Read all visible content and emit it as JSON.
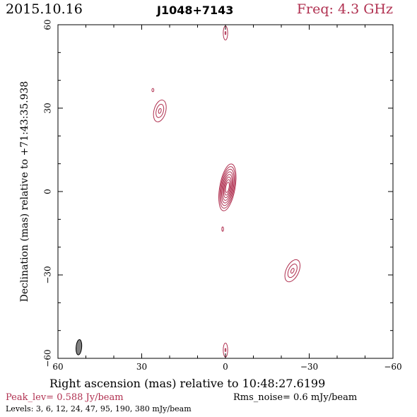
{
  "header": {
    "date": "2015.10.16",
    "source": "J1048+7143",
    "frequency": "Freq: 4.3 GHz"
  },
  "footer": {
    "peak": "Peak_lev=  0.588 Jy/beam",
    "rms": "Rms_noise=   0.6 mJy/beam",
    "levels": "Levels:    3,    6,   12,   24,   47,   95, 190, 380 mJy/beam"
  },
  "colors": {
    "contour": "#b03050",
    "beam": "#808080",
    "frame": "#000000"
  },
  "chart_data": {
    "type": "contour",
    "xlabel": "Right ascension (mas) relative to 10:48:27.6199",
    "ylabel": "Declination (mas) relative to +71:43:35.938",
    "xlim": [
      60,
      -60
    ],
    "ylim": [
      -60,
      60
    ],
    "xticks": [
      60,
      30,
      0,
      -30,
      -60
    ],
    "yticks": [
      -60,
      -30,
      0,
      30,
      60
    ],
    "xtick_labels": [
      "60",
      "30",
      "0",
      "−30",
      "−60"
    ],
    "ytick_labels": [
      "−60",
      "−30",
      "0",
      "30",
      "60"
    ],
    "contour_levels_mJy": [
      3,
      6,
      12,
      24,
      47,
      95,
      190,
      380
    ],
    "components": [
      {
        "name": "core",
        "x": -0.7,
        "y": 1.5,
        "major": 17,
        "minor": 5.5,
        "angle": 10,
        "levels": 8
      },
      {
        "name": "north-west component",
        "x": 23.5,
        "y": 29,
        "major": 8,
        "minor": 4.2,
        "angle": 15,
        "levels": 3
      },
      {
        "name": "south-east component",
        "x": -24,
        "y": -28.5,
        "major": 8.5,
        "minor": 4.5,
        "angle": 25,
        "levels": 3
      },
      {
        "name": "north edge feature",
        "x": 0,
        "y": 57,
        "major": 5,
        "minor": 1.6,
        "angle": 0,
        "levels": 2
      },
      {
        "name": "south edge feature",
        "x": 0,
        "y": -57,
        "major": 5,
        "minor": 1.6,
        "angle": 0,
        "levels": 2
      },
      {
        "name": "small blob north-west",
        "x": 26,
        "y": 36.5,
        "major": 1.2,
        "minor": 0.7,
        "angle": 0,
        "levels": 1
      },
      {
        "name": "small blob below core",
        "x": 1,
        "y": -13.5,
        "major": 1.6,
        "minor": 0.6,
        "angle": 0,
        "levels": 1
      }
    ],
    "beam": {
      "x": 52.5,
      "y": -56,
      "major": 5.5,
      "minor": 2.0,
      "angle": 5
    }
  }
}
